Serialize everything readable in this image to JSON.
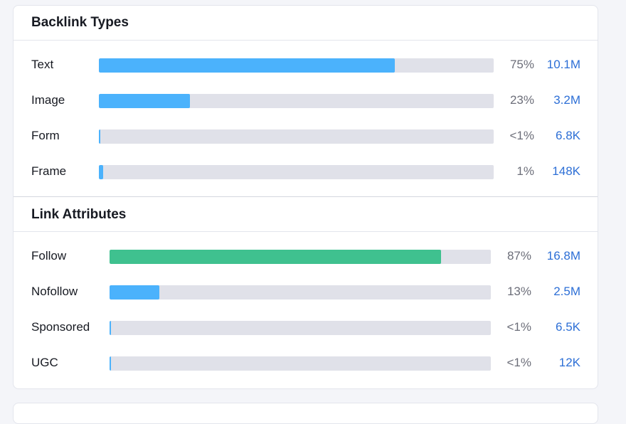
{
  "colors": {
    "blue_bar": "#4bb2fc",
    "green_bar": "#3fc18f",
    "track": "#e0e1e9",
    "link": "#2d6fd6"
  },
  "backlink_types": {
    "title": "Backlink Types",
    "rows": [
      {
        "label": "Text",
        "percent": "75%",
        "count": "10.1M",
        "fill": 0.75,
        "color": "#4bb2fc"
      },
      {
        "label": "Image",
        "percent": "23%",
        "count": "3.2M",
        "fill": 0.23,
        "color": "#4bb2fc"
      },
      {
        "label": "Form",
        "percent": "<1%",
        "count": "6.8K",
        "fill": 0.004,
        "color": "#4bb2fc"
      },
      {
        "label": "Frame",
        "percent": "1%",
        "count": "148K",
        "fill": 0.011,
        "color": "#4bb2fc"
      }
    ]
  },
  "link_attributes": {
    "title": "Link Attributes",
    "rows": [
      {
        "label": "Follow",
        "percent": "87%",
        "count": "16.8M",
        "fill": 0.87,
        "color": "#3fc18f"
      },
      {
        "label": "Nofollow",
        "percent": "13%",
        "count": "2.5M",
        "fill": 0.13,
        "color": "#4bb2fc"
      },
      {
        "label": "Sponsored",
        "percent": "<1%",
        "count": "6.5K",
        "fill": 0.004,
        "color": "#4bb2fc"
      },
      {
        "label": "UGC",
        "percent": "<1%",
        "count": "12K",
        "fill": 0.004,
        "color": "#4bb2fc"
      }
    ]
  }
}
